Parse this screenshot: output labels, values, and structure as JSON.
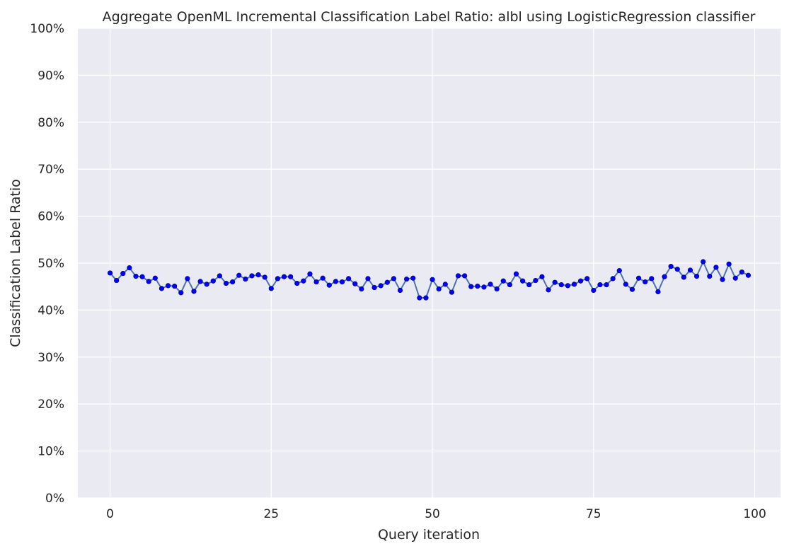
{
  "chart_data": {
    "type": "line",
    "title": "Aggregate OpenML Incremental Classification Label Ratio: albl using LogisticRegression classifier",
    "xlabel": "Query iteration",
    "ylabel": "Classification Label Ratio",
    "xlim": [
      -5,
      104
    ],
    "ylim": [
      0,
      1
    ],
    "x_ticks": [
      0,
      25,
      50,
      75,
      100
    ],
    "x_tick_labels": [
      "0",
      "25",
      "50",
      "75",
      "100"
    ],
    "y_ticks": [
      0,
      0.1,
      0.2,
      0.3,
      0.4,
      0.5,
      0.6,
      0.7,
      0.8,
      0.9,
      1.0
    ],
    "y_tick_labels": [
      "0%",
      "10%",
      "20%",
      "30%",
      "40%",
      "50%",
      "60%",
      "70%",
      "80%",
      "90%",
      "100%"
    ],
    "grid": true,
    "background_color": "#eaeaf2",
    "line_color": "#4c72b0",
    "marker_color": "#0000ff",
    "series": [
      {
        "x": [
          0,
          1,
          2,
          3,
          4,
          5,
          6,
          7,
          8,
          9,
          10,
          11,
          12,
          13,
          14,
          15,
          16,
          17,
          18,
          19,
          20,
          21,
          22,
          23,
          24,
          25,
          26,
          27,
          28,
          29,
          30,
          31,
          32,
          33,
          34,
          35,
          36,
          37,
          38,
          39,
          40,
          41,
          42,
          43,
          44,
          45,
          46,
          47,
          48,
          49,
          50,
          51,
          52,
          53,
          54,
          55,
          56,
          57,
          58,
          59,
          60,
          61,
          62,
          63,
          64,
          65,
          66,
          67,
          68,
          69,
          70,
          71,
          72,
          73,
          74,
          75,
          76,
          77,
          78,
          79,
          80,
          81,
          82,
          83,
          84,
          85,
          86,
          87,
          88,
          89,
          90,
          91,
          92,
          93,
          94,
          95,
          96,
          97,
          98,
          99
        ],
        "values": [
          0.479,
          0.463,
          0.478,
          0.49,
          0.472,
          0.471,
          0.461,
          0.468,
          0.446,
          0.452,
          0.451,
          0.437,
          0.467,
          0.44,
          0.461,
          0.455,
          0.462,
          0.473,
          0.457,
          0.46,
          0.474,
          0.466,
          0.473,
          0.475,
          0.47,
          0.446,
          0.467,
          0.471,
          0.471,
          0.457,
          0.462,
          0.477,
          0.46,
          0.468,
          0.453,
          0.461,
          0.46,
          0.467,
          0.456,
          0.445,
          0.467,
          0.448,
          0.452,
          0.459,
          0.467,
          0.442,
          0.466,
          0.468,
          0.426,
          0.426,
          0.465,
          0.445,
          0.455,
          0.438,
          0.473,
          0.473,
          0.45,
          0.451,
          0.449,
          0.455,
          0.445,
          0.462,
          0.454,
          0.477,
          0.462,
          0.454,
          0.463,
          0.471,
          0.443,
          0.459,
          0.454,
          0.452,
          0.455,
          0.462,
          0.467,
          0.442,
          0.454,
          0.454,
          0.467,
          0.484,
          0.455,
          0.444,
          0.468,
          0.46,
          0.467,
          0.439,
          0.471,
          0.493,
          0.487,
          0.47,
          0.485,
          0.472,
          0.503,
          0.472,
          0.491,
          0.465,
          0.498,
          0.468,
          0.481,
          0.474
        ]
      }
    ]
  }
}
